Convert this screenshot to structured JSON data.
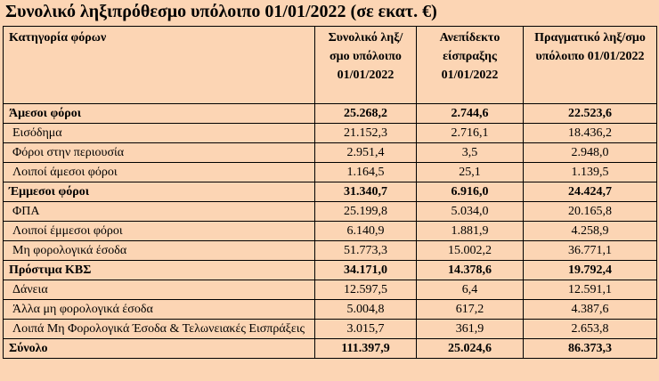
{
  "header": {
    "title": "Συνολικό ληξιπρόθεσμο υπόλοιπο 01/01/2022 (σε εκατ. €)"
  },
  "table": {
    "columns": [
      "Κατηγορία φόρων",
      "Συνολικό ληξ/σμο υπόλοιπο 01/01/2022",
      "Ανεπίδεκτο είσπραξης 01/01/2022",
      "Πραγματικό ληξ/σμο υπόλοιπο 01/01/2022"
    ],
    "rows": [
      {
        "bold": true,
        "cells": [
          "Άμεσοι φόροι",
          "25.268,2",
          "2.744,6",
          "22.523,6"
        ]
      },
      {
        "bold": false,
        "cells": [
          "Εισόδημα",
          "21.152,3",
          "2.716,1",
          "18.436,2"
        ]
      },
      {
        "bold": false,
        "cells": [
          "Φόροι στην περιουσία",
          "2.951,4",
          "3,5",
          "2.948,0"
        ]
      },
      {
        "bold": false,
        "cells": [
          "Λοιποί άμεσοι φόροι",
          "1.164,5",
          "25,1",
          "1.139,5"
        ]
      },
      {
        "bold": true,
        "cells": [
          "Έμμεσοι φόροι",
          "31.340,7",
          "6.916,0",
          "24.424,7"
        ]
      },
      {
        "bold": false,
        "cells": [
          "ΦΠΑ",
          "25.199,8",
          "5.034,0",
          "20.165,8"
        ]
      },
      {
        "bold": false,
        "cells": [
          "Λοιποί έμμεσοι φόροι",
          "6.140,9",
          "1.881,9",
          "4.258,9"
        ]
      },
      {
        "bold": false,
        "cells": [
          "Μη φορολογικά έσοδα",
          "51.773,3",
          "15.002,2",
          "36.771,1"
        ]
      },
      {
        "bold": true,
        "cells": [
          "Πρόστιμα ΚΒΣ",
          "34.171,0",
          "14.378,6",
          "19.792,4"
        ]
      },
      {
        "bold": false,
        "cells": [
          "Δάνεια",
          "12.597,5",
          "6,4",
          "12.591,1"
        ]
      },
      {
        "bold": false,
        "cells": [
          "Άλλα μη φορολογικά έσοδα",
          "5.004,8",
          "617,2",
          "4.387,6"
        ]
      },
      {
        "bold": false,
        "cells": [
          "Λοιπά Μη Φορολογικά Έσοδα & Τελωνειακές Εισπράξεις",
          "3.015,7",
          "361,9",
          "2.653,8"
        ]
      },
      {
        "bold": true,
        "cells": [
          "Σύνολο",
          "111.397,9",
          "25.024,6",
          "86.373,3"
        ]
      }
    ]
  }
}
